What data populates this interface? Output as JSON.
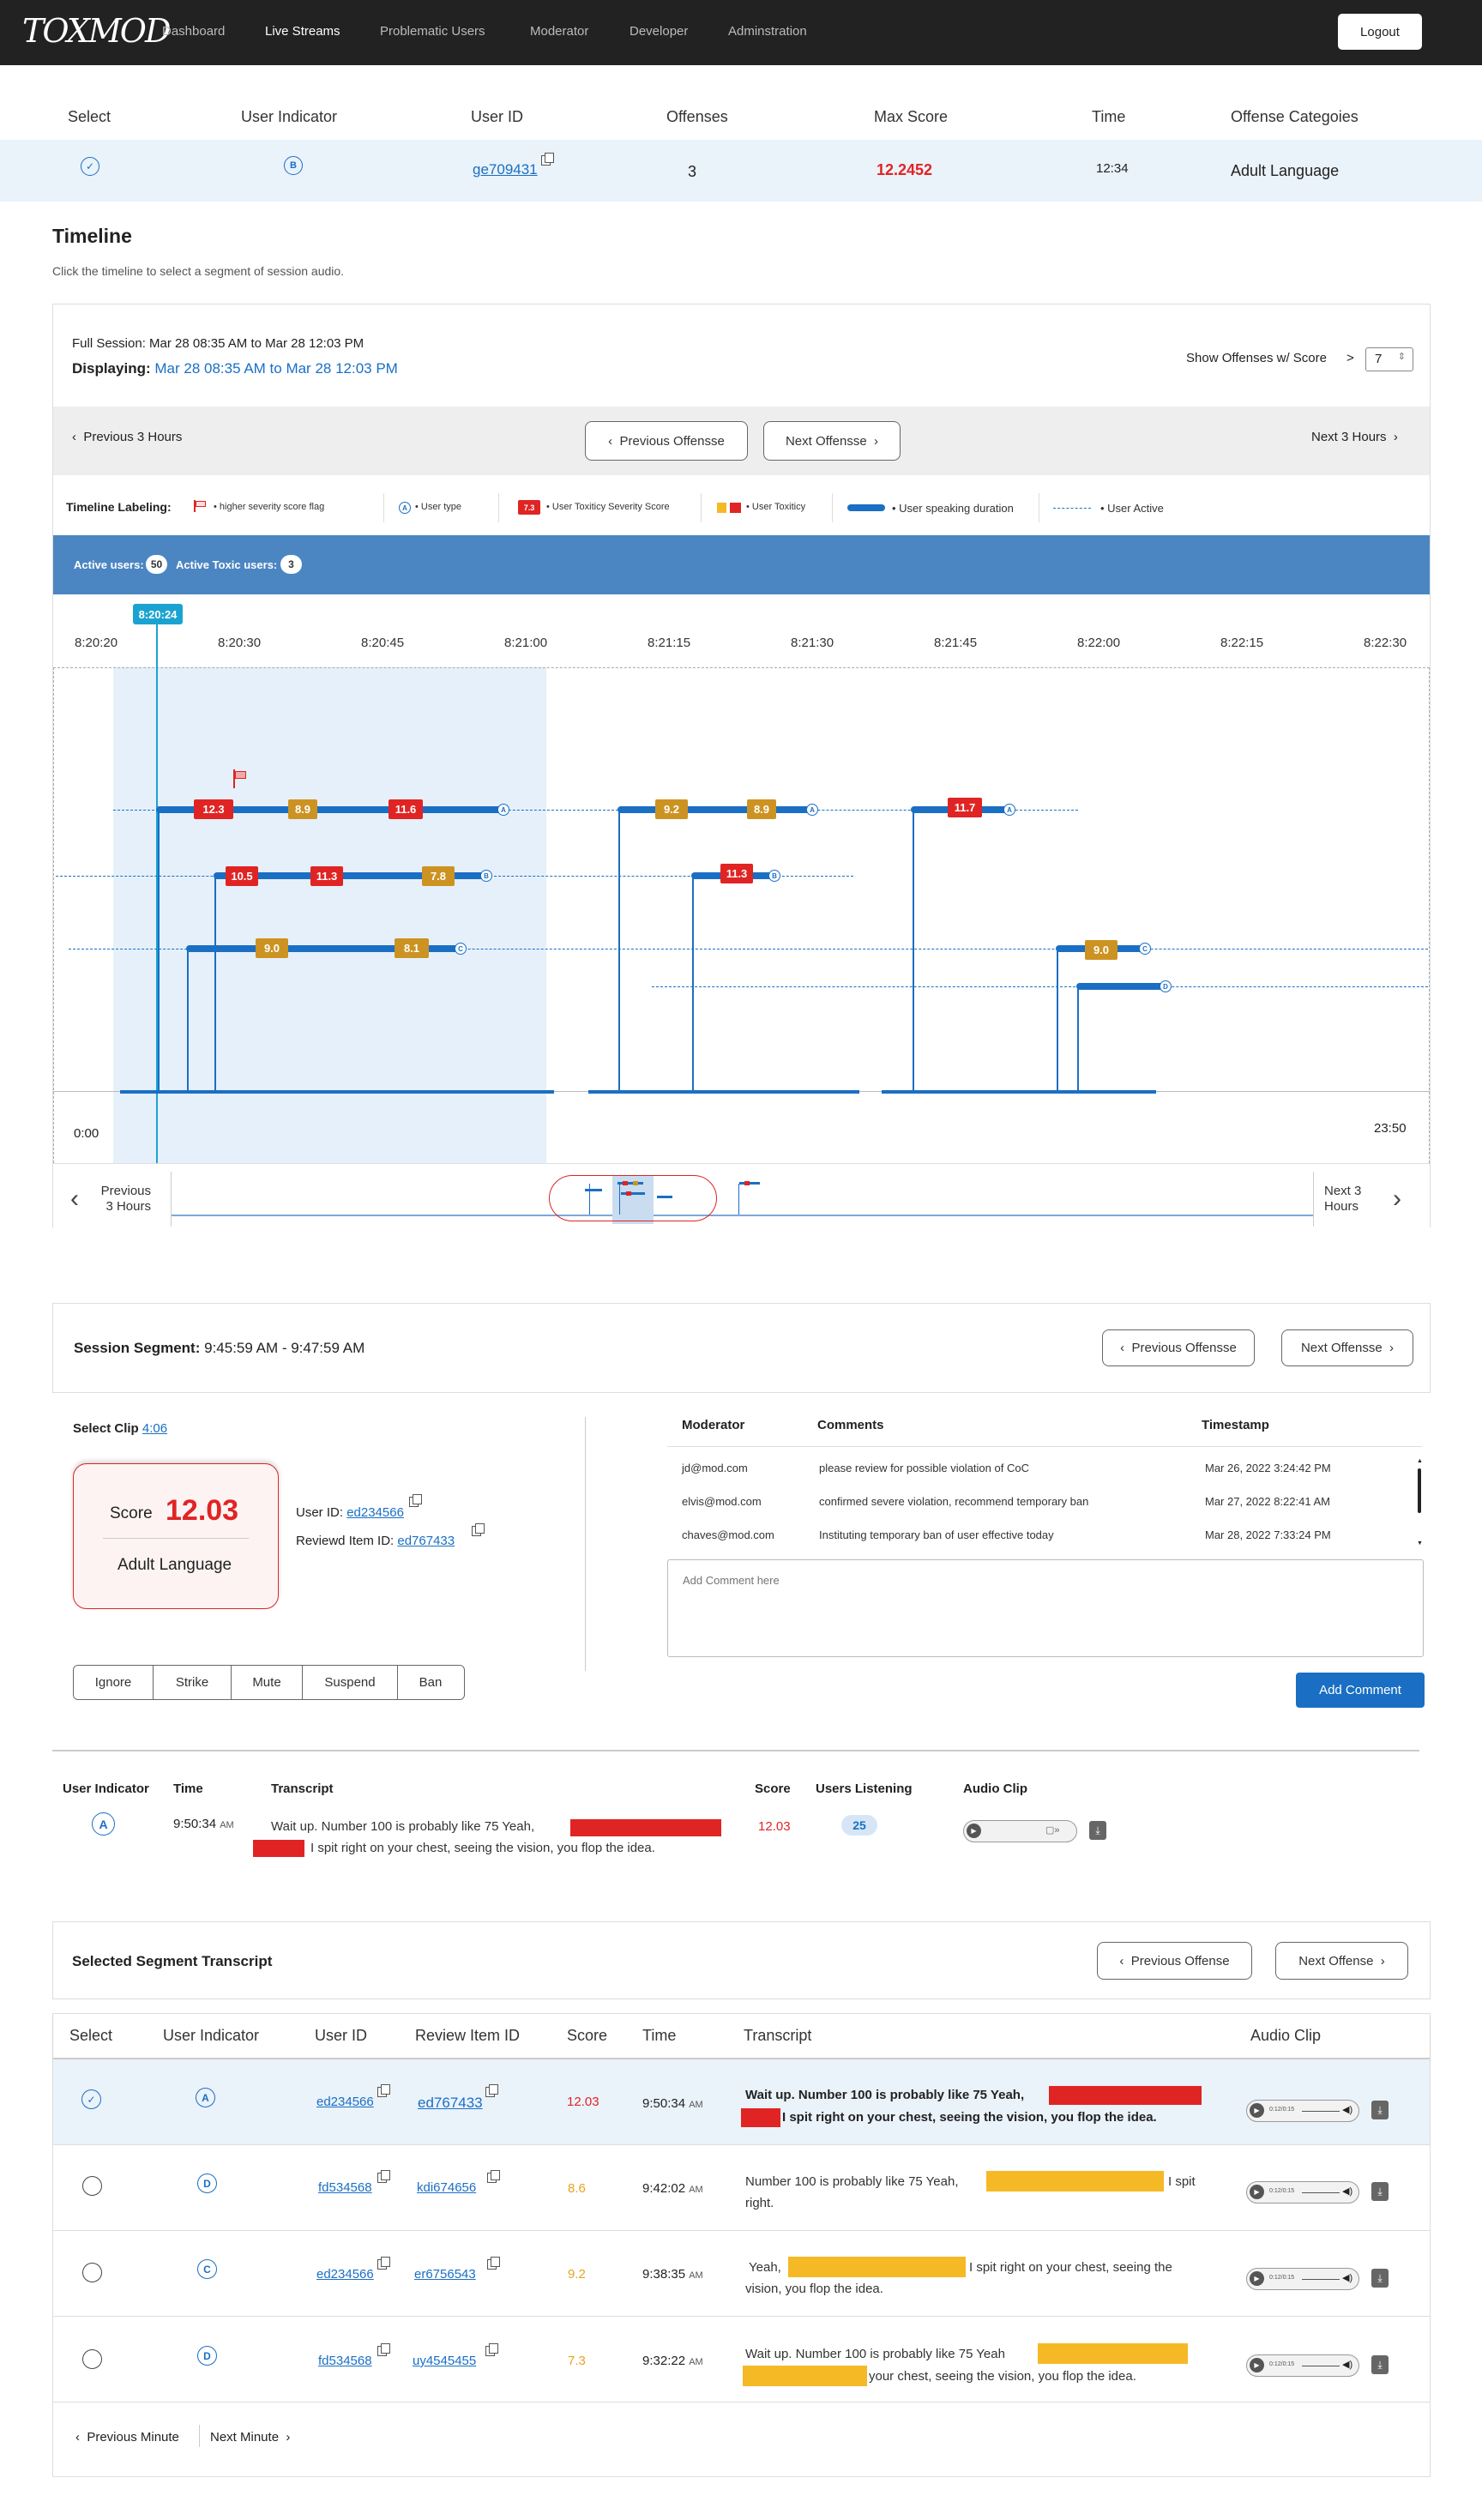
{
  "app": {
    "logo": "TOXMOD",
    "logout": "Logout"
  },
  "nav": [
    {
      "label": "Dashboard",
      "active": false
    },
    {
      "label": "Live Streams",
      "active": true
    },
    {
      "label": "Problematic Users",
      "active": false
    },
    {
      "label": "Moderator",
      "active": false
    },
    {
      "label": "Developer",
      "active": false
    },
    {
      "label": "Adminstration",
      "active": false
    }
  ],
  "summary": {
    "headers": [
      "Select",
      "User Indicator",
      "User ID",
      "Offenses",
      "Max Score",
      "Time",
      "Offense Categoies"
    ],
    "row": {
      "indicator": "B",
      "user_id": "ge709431",
      "offenses": "3",
      "max_score": "12.2452",
      "time": "12:34",
      "category": "Adult Language"
    }
  },
  "timeline": {
    "title": "Timeline",
    "subtitle": "Click the timeline to select a segment of session audio.",
    "full_session_label": "Full Session:",
    "full_session_value": "Mar 28 08:35 AM  to Mar 28 12:03 PM",
    "displaying_label": "Displaying:",
    "displaying_value": "Mar 28 08:35 AM  to Mar 28 12:03 PM",
    "show_offenses_label": "Show Offenses w/ Score",
    "show_offenses_op": ">",
    "show_offenses_value": "7",
    "prev_hours": "Previous 3 Hours",
    "prev_offense": "Previous Offensse",
    "next_offense": "Next Offensse",
    "next_hours": "Next  3 Hours",
    "legend": {
      "title": "Timeline Labeling:",
      "flag": "higher severity score flag",
      "usertype_glyph": "A",
      "usertype": "User type",
      "score_sample": "7.3",
      "score": "User Toxiticy Severity Score",
      "toxicity": "User Toxiticy",
      "speaking": "User speaking duration",
      "active": "User Active"
    },
    "active_users_label": "Active users:",
    "active_users": "50",
    "active_toxic_label": "Active Toxic users:",
    "active_toxic": "3",
    "cursor": "8:20:24",
    "ticks": [
      "8:20:20",
      "8:20:30",
      "8:20:45",
      "8:21:00",
      "8:21:15",
      "8:21:30",
      "8:21:45",
      "8:22:00",
      "8:22:15",
      "8:22:30"
    ],
    "start": "0:00",
    "end": "23:50",
    "badges": [
      "12.3",
      "8.9",
      "11.6",
      "9.2",
      "8.9",
      "11.7",
      "10.5",
      "11.3",
      "7.8",
      "11.3",
      "9.0",
      "8.1",
      "9.0"
    ],
    "badge_colors": {
      "high": "#e02424",
      "mid": "#cc9322"
    },
    "mini_prev": "Previous 3 Hours",
    "mini_next": "Next 3 Hours"
  },
  "segment": {
    "label": "Session Segment:",
    "value": "9:45:59 AM - 9:47:59 AM",
    "prev": "Previous Offensse",
    "next": "Next Offensse",
    "select_clip_label": "Select Clip",
    "select_clip_value": "4:06",
    "score_label": "Score",
    "score_value": "12.03",
    "category": "Adult Language",
    "user_id_label": "User ID:",
    "user_id": "ed234566",
    "review_label": "Reviewd Item ID:",
    "review_id": "ed767433",
    "actions": [
      "Ignore",
      "Strike",
      "Mute",
      "Suspend",
      "Ban"
    ],
    "comments_headers": [
      "Moderator",
      "Comments",
      "Timestamp"
    ],
    "comments": [
      {
        "moderator": "jd@mod.com",
        "comment": "please review for possible violation of CoC",
        "timestamp": "Mar 26, 2022 3:24:42 PM"
      },
      {
        "moderator": "elvis@mod.com",
        "comment": "confirmed severe violation, recommend temporary ban",
        "timestamp": "Mar 27, 2022 8:22:41 AM"
      },
      {
        "moderator": "chaves@mod.com",
        "comment": "Instituting temporary ban of user effective today",
        "timestamp": "Mar 28, 2022 7:33:24 PM"
      }
    ],
    "comment_placeholder": "Add Comment here",
    "add_comment": "Add Comment"
  },
  "clip": {
    "headers": [
      "User Indicator",
      "Time",
      "Transcript",
      "Score",
      "Users Listening",
      "Audio Clip"
    ],
    "indicator": "A",
    "time": "9:50:34",
    "time_suffix": "AM",
    "transcript_a": "Wait up. Number 100 is probably like 75 Yeah,",
    "transcript_b": "I spit right on your chest, seeing the vision, you flop the idea.",
    "score": "12.03",
    "listening": "25"
  },
  "selected": {
    "title": "Selected Segment Transcript",
    "prev": "Previous Offense",
    "next": "Next Offense",
    "headers": [
      "Select",
      "User Indicator",
      "User ID",
      "Review Item ID",
      "Score",
      "Time",
      "Transcript",
      "Audio Clip"
    ],
    "player_time": "0:12/0:15",
    "rows": [
      {
        "indicator": "A",
        "user_id": "ed234566",
        "review_id": "ed767433",
        "score": "12.03",
        "score_color": "#e02424",
        "time": "9:50:34",
        "ampm": "AM",
        "t1": "Wait up. Number 100 is probably like 75 Yeah,",
        "t2": "I spit right on your chest, seeing the vision, you flop the idea."
      },
      {
        "indicator": "D",
        "user_id": "fd534568",
        "review_id": "kdi674656",
        "score": "8.6",
        "score_color": "#e8a21f",
        "time": "9:42:02",
        "ampm": "AM",
        "t1": "Number 100 is probably like 75 Yeah,",
        "t2": "I spit",
        "t3": "right."
      },
      {
        "indicator": "C",
        "user_id": "ed234566",
        "review_id": "er6756543",
        "score": "9.2",
        "score_color": "#e8a21f",
        "time": "9:38:35",
        "ampm": "AM",
        "t1": "Yeah,",
        "t2": "I spit right on your chest, seeing the",
        "t3": "vision, you flop the idea."
      },
      {
        "indicator": "D",
        "user_id": "fd534568",
        "review_id": "uy4545455",
        "score": "7.3",
        "score_color": "#e8a21f",
        "time": "9:32:22",
        "ampm": "AM",
        "t1": "Wait up. Number 100 is probably like 75 Yeah",
        "t2": "your chest, seeing the vision, you flop the idea."
      }
    ],
    "prev_minute": "Previous Minute",
    "next_minute": "Next Minute"
  }
}
